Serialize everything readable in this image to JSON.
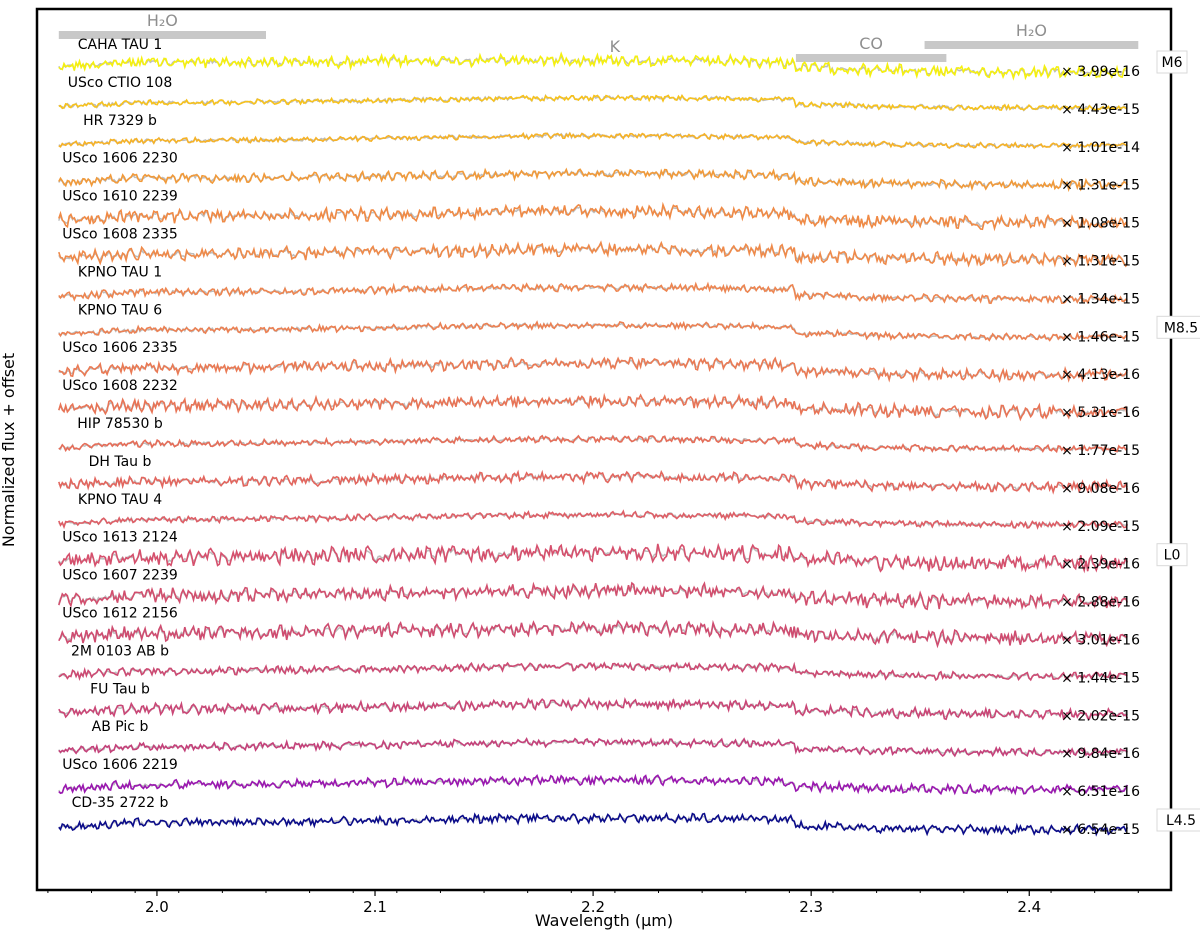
{
  "chart_data": {
    "type": "line",
    "xlabel": "Wavelength (µm)",
    "ylabel": "Normalized flux + offset",
    "xlim": [
      1.945,
      2.465
    ],
    "x_ticks": [
      2.0,
      2.1,
      2.2,
      2.3,
      2.4
    ],
    "x_tick_labels": [
      "2.0",
      "2.1",
      "2.2",
      "2.3",
      "2.4"
    ],
    "grid": false,
    "legend": "none",
    "spectrum_range": [
      1.955,
      2.445
    ],
    "model_color": "#bdbdbd",
    "series": [
      {
        "name": "CAHA TAU 1",
        "scale": "× 3.99e-16",
        "color": "#f5f00f",
        "noise": 0.9,
        "co_depth": 1.0,
        "slope": 0.4,
        "spt": "M6"
      },
      {
        "name": "USco CTIO 108",
        "scale": "× 4.43e-15",
        "color": "#f7c21c",
        "noise": 0.4,
        "co_depth": 1.0,
        "slope": -0.2
      },
      {
        "name": "HR 7329 b",
        "scale": "× 1.01e-14",
        "color": "#f6b226",
        "noise": 0.4,
        "co_depth": 1.0,
        "slope": -0.2
      },
      {
        "name": "USco 1606 2230",
        "scale": "× 1.31e-15",
        "color": "#f19a3a",
        "noise": 0.7,
        "co_depth": 1.2,
        "slope": -0.2
      },
      {
        "name": "USco 1610 2239",
        "scale": "× 1.08e-15",
        "color": "#f08a45",
        "noise": 1.0,
        "co_depth": 1.2,
        "slope": -0.2
      },
      {
        "name": "USco 1608 2335",
        "scale": "× 1.31e-15",
        "color": "#ef8a4a",
        "noise": 1.0,
        "co_depth": 1.0,
        "slope": -0.2
      },
      {
        "name": "KPNO TAU 1",
        "scale": "× 1.34e-15",
        "color": "#ee8550",
        "noise": 0.6,
        "co_depth": 1.3,
        "slope": -0.2
      },
      {
        "name": "KPNO TAU 6",
        "scale": "× 1.46e-15",
        "color": "#ec8052",
        "noise": 0.5,
        "co_depth": 1.3,
        "slope": -0.2,
        "spt": "M8.5"
      },
      {
        "name": "USco 1606 2335",
        "scale": "× 4.13e-16",
        "color": "#ea7a54",
        "noise": 0.9,
        "co_depth": 1.3,
        "slope": -0.2
      },
      {
        "name": "USco 1608 2232",
        "scale": "× 5.31e-16",
        "color": "#e87456",
        "noise": 1.0,
        "co_depth": 1.2,
        "slope": -0.2
      },
      {
        "name": "HIP 78530 b",
        "scale": "× 1.77e-15",
        "color": "#e66d58",
        "noise": 0.5,
        "co_depth": 1.0,
        "slope": -0.2
      },
      {
        "name": "DH Tau b",
        "scale": "× 9.08e-16",
        "color": "#e3665e",
        "noise": 0.8,
        "co_depth": 1.0,
        "slope": -0.2
      },
      {
        "name": "KPNO TAU 4",
        "scale": "× 2.09e-15",
        "color": "#de5e66",
        "noise": 0.5,
        "co_depth": 1.0,
        "slope": -0.2
      },
      {
        "name": "USco 1613 2124",
        "scale": "× 2.39e-16",
        "color": "#d6506d",
        "noise": 1.3,
        "co_depth": 1.2,
        "slope": -0.2,
        "spt": "L0"
      },
      {
        "name": "USco 1607 2239",
        "scale": "× 2.88e-16",
        "color": "#d24f6e",
        "noise": 1.1,
        "co_depth": 1.2,
        "slope": -0.2
      },
      {
        "name": "USco 1612 2156",
        "scale": "× 3.01e-16",
        "color": "#cf4c70",
        "noise": 1.1,
        "co_depth": 1.0,
        "slope": -0.2
      },
      {
        "name": "2M 0103 AB b",
        "scale": "× 1.44e-15",
        "color": "#cd4a73",
        "noise": 0.6,
        "co_depth": 1.0,
        "slope": -0.2
      },
      {
        "name": "FU Tau b",
        "scale": "× 2.02e-15",
        "color": "#ca4676",
        "noise": 0.8,
        "co_depth": 1.0,
        "slope": -0.2
      },
      {
        "name": "AB Pic b",
        "scale": "× 9.84e-16",
        "color": "#c5417a",
        "noise": 0.6,
        "co_depth": 1.0,
        "slope": -0.2
      },
      {
        "name": "USco 1606 2219",
        "scale": "× 6.51e-16",
        "color": "#9a17b0",
        "noise": 0.7,
        "co_depth": 1.0,
        "slope": -0.2
      },
      {
        "name": "CD-35 2722 b",
        "scale": "× 6.54e-15",
        "color": "#0b0c8a",
        "noise": 0.7,
        "co_depth": 1.3,
        "slope": -0.2,
        "spt": "L4.5"
      }
    ],
    "bands": [
      {
        "label": "H₂O",
        "x_start": 1.955,
        "x_end": 2.05
      },
      {
        "label": "CO",
        "x_start": 2.293,
        "x_end": 2.362
      },
      {
        "label": "H₂O",
        "x_start": 2.352,
        "x_end": 2.45
      }
    ],
    "line_markers": [
      {
        "label": "K",
        "x": 2.21
      }
    ]
  }
}
